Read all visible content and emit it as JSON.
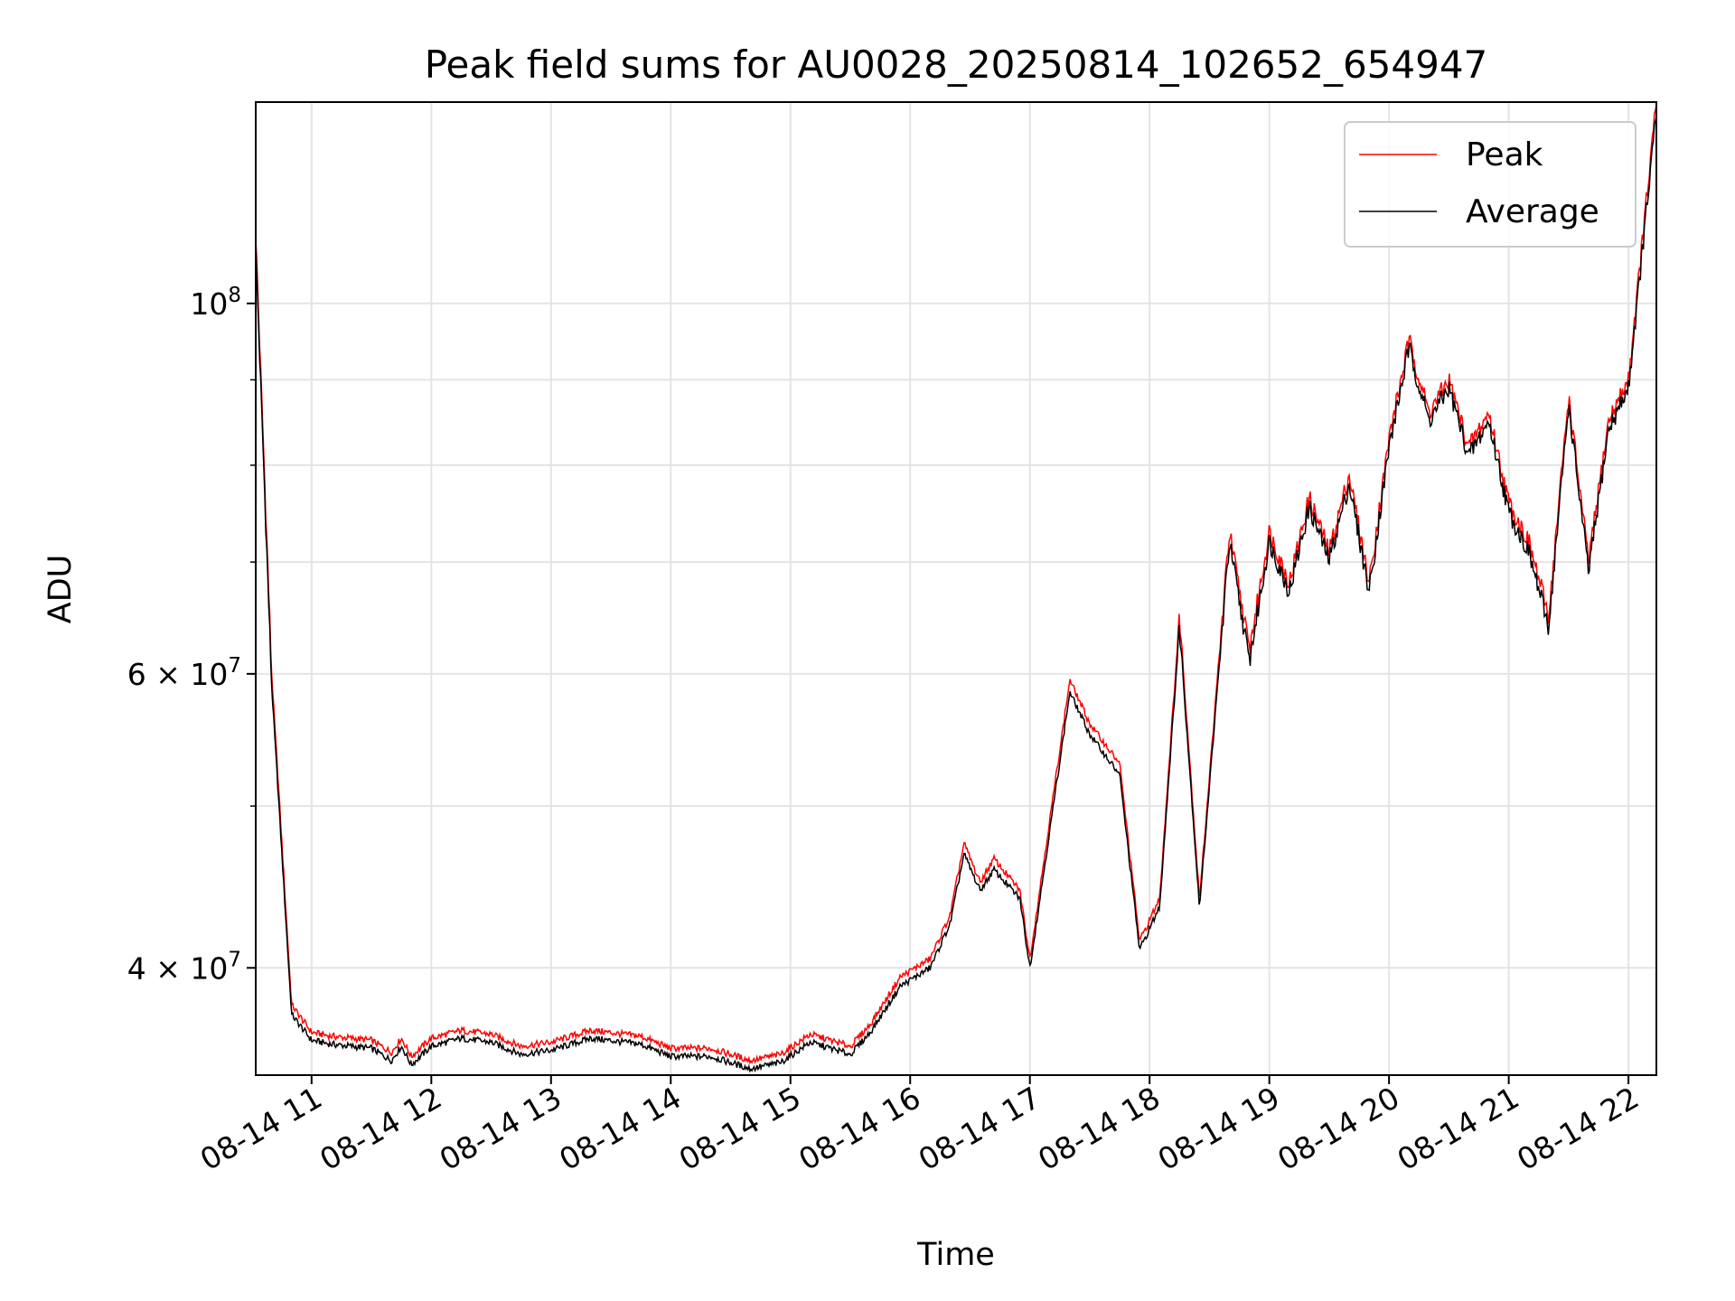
{
  "chart_data": {
    "type": "line",
    "title": "Peak field sums for AU0028_20250814_102652_654947",
    "xlabel": "Time",
    "ylabel": "ADU",
    "yscale": "log",
    "ylim": [
      34500000,
      132000000
    ],
    "xlim": [
      "2025-08-14 10:32",
      "2025-08-14 22:14"
    ],
    "grid": true,
    "legend_position": "top-right",
    "x_ticks": [
      "08-14 11",
      "08-14 12",
      "08-14 13",
      "08-14 14",
      "08-14 15",
      "08-14 16",
      "08-14 17",
      "08-14 18",
      "08-14 19",
      "08-14 20",
      "08-14 21",
      "08-14 22"
    ],
    "y_ticks": [
      {
        "value": 40000000,
        "mantissa": "4",
        "exponent": "7"
      },
      {
        "value": 60000000,
        "mantissa": "6",
        "exponent": "7"
      },
      {
        "value": 100000000,
        "mantissa": "10",
        "exponent": "8"
      }
    ],
    "y_minor_ticks": [
      50000000,
      70000000,
      80000000,
      90000000
    ],
    "x": [
      "2025-08-14 10:32",
      "2025-08-14 10:40",
      "2025-08-14 10:50",
      "2025-08-14 11:00",
      "2025-08-14 11:10",
      "2025-08-14 11:30",
      "2025-08-14 11:40",
      "2025-08-14 11:45",
      "2025-08-14 11:50",
      "2025-08-14 12:00",
      "2025-08-14 12:15",
      "2025-08-14 12:30",
      "2025-08-14 12:45",
      "2025-08-14 13:00",
      "2025-08-14 13:20",
      "2025-08-14 13:45",
      "2025-08-14 14:00",
      "2025-08-14 14:20",
      "2025-08-14 14:40",
      "2025-08-14 14:55",
      "2025-08-14 15:10",
      "2025-08-14 15:30",
      "2025-08-14 15:40",
      "2025-08-14 15:55",
      "2025-08-14 16:10",
      "2025-08-14 16:20",
      "2025-08-14 16:27",
      "2025-08-14 16:35",
      "2025-08-14 16:42",
      "2025-08-14 16:55",
      "2025-08-14 17:00",
      "2025-08-14 17:20",
      "2025-08-14 17:30",
      "2025-08-14 17:45",
      "2025-08-14 17:55",
      "2025-08-14 18:05",
      "2025-08-14 18:15",
      "2025-08-14 18:25",
      "2025-08-14 18:40",
      "2025-08-14 18:50",
      "2025-08-14 19:00",
      "2025-08-14 19:10",
      "2025-08-14 19:20",
      "2025-08-14 19:30",
      "2025-08-14 19:40",
      "2025-08-14 19:50",
      "2025-08-14 20:00",
      "2025-08-14 20:10",
      "2025-08-14 20:20",
      "2025-08-14 20:30",
      "2025-08-14 20:40",
      "2025-08-14 20:50",
      "2025-08-14 21:00",
      "2025-08-14 21:10",
      "2025-08-14 21:20",
      "2025-08-14 21:30",
      "2025-08-14 21:40",
      "2025-08-14 21:50",
      "2025-08-14 22:00",
      "2025-08-14 22:14"
    ],
    "series": [
      {
        "name": "Peak",
        "color": "#ff0000",
        "values": [
          110000000,
          60000000,
          38000000,
          36600000,
          36400000,
          36200000,
          35600000,
          36300000,
          35400000,
          36300000,
          36700000,
          36500000,
          35900000,
          36100000,
          36700000,
          36400000,
          35800000,
          35800000,
          35200000,
          35500000,
          36500000,
          35900000,
          37000000,
          39500000,
          40500000,
          43000000,
          47500000,
          45000000,
          46500000,
          44500000,
          40500000,
          59500000,
          56000000,
          53000000,
          41500000,
          44000000,
          65000000,
          44000000,
          73000000,
          62000000,
          73000000,
          68000000,
          76500000,
          71000000,
          79000000,
          68000000,
          83000000,
          95000000,
          86000000,
          90000000,
          82000000,
          86000000,
          76000000,
          72000000,
          65000000,
          88000000,
          70000000,
          85000000,
          90000000,
          132000000
        ]
      },
      {
        "name": "Average",
        "color": "#000000",
        "values": [
          108000000,
          59000000,
          37500000,
          36200000,
          36000000,
          35800000,
          35200000,
          35900000,
          35000000,
          35900000,
          36300000,
          36100000,
          35500000,
          35700000,
          36300000,
          36000000,
          35400000,
          35400000,
          34800000,
          35100000,
          36100000,
          35500000,
          36600000,
          39000000,
          40000000,
          42500000,
          46800000,
          44500000,
          45800000,
          44000000,
          40000000,
          58500000,
          55200000,
          52200000,
          41000000,
          43500000,
          64000000,
          43500000,
          72000000,
          61000000,
          72000000,
          67200000,
          75500000,
          70200000,
          78000000,
          67200000,
          82000000,
          94000000,
          85000000,
          89000000,
          81000000,
          85000000,
          75000000,
          71000000,
          64000000,
          87000000,
          69000000,
          84000000,
          89000000,
          130000000
        ]
      }
    ]
  }
}
